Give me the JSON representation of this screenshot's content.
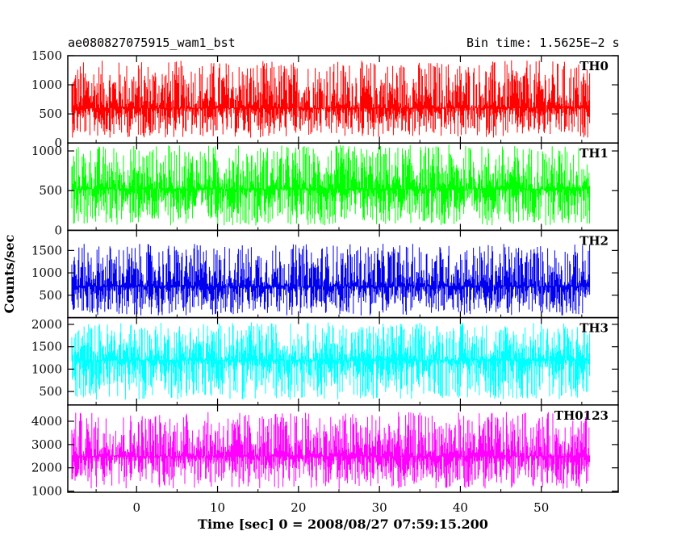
{
  "chart_data": {
    "type": "line",
    "title_left": "ae080827075915_wam1_bst",
    "title_right": "Bin time: 1.5625E−2 s",
    "xlabel": "Time [sec] 0 = 2008/08/27 07:59:15.200",
    "ylabel": "Counts/sec",
    "xlim": [
      -8.5,
      59.5
    ],
    "x_data_range": [
      -8,
      56
    ],
    "x_ticks": [
      0,
      10,
      20,
      30,
      40,
      50
    ],
    "x_tick_labels": [
      "0",
      "10",
      "20",
      "30",
      "40",
      "50"
    ],
    "grid": false,
    "panels": [
      {
        "name": "TH0",
        "color": "#ff0000",
        "ylim": [
          0,
          1500
        ],
        "yticks": [
          0,
          500,
          1000,
          1500
        ],
        "ytick_labels": [
          "0",
          "500",
          "1000",
          "1500"
        ],
        "baseline": 600,
        "noise_low": 90,
        "noise_high": 1420
      },
      {
        "name": "TH1",
        "color": "#00ff00",
        "ylim": [
          0,
          1100
        ],
        "yticks": [
          0,
          500,
          1000
        ],
        "ytick_labels": [
          "0",
          "500",
          "1000"
        ],
        "baseline": 520,
        "noise_low": 60,
        "noise_high": 1080
      },
      {
        "name": "TH2",
        "color": "#0000ee",
        "ylim": [
          0,
          1950
        ],
        "yticks": [
          500,
          1000,
          1500
        ],
        "ytick_labels": [
          "500",
          "1000",
          "1500"
        ],
        "baseline": 700,
        "noise_low": 50,
        "noise_high": 1650
      },
      {
        "name": "TH3",
        "color": "#00ffff",
        "ylim": [
          200,
          2150
        ],
        "yticks": [
          500,
          1000,
          1500,
          2000
        ],
        "ytick_labels": [
          "500",
          "1000",
          "1500",
          "2000"
        ],
        "baseline": 1200,
        "noise_low": 320,
        "noise_high": 2050
      },
      {
        "name": "TH0123",
        "color": "#ff00ff",
        "ylim": [
          950,
          4700
        ],
        "yticks": [
          1000,
          2000,
          3000,
          4000
        ],
        "ytick_labels": [
          "1000",
          "2000",
          "3000",
          "4000"
        ],
        "baseline": 2500,
        "noise_low": 1100,
        "noise_high": 4400
      }
    ]
  }
}
